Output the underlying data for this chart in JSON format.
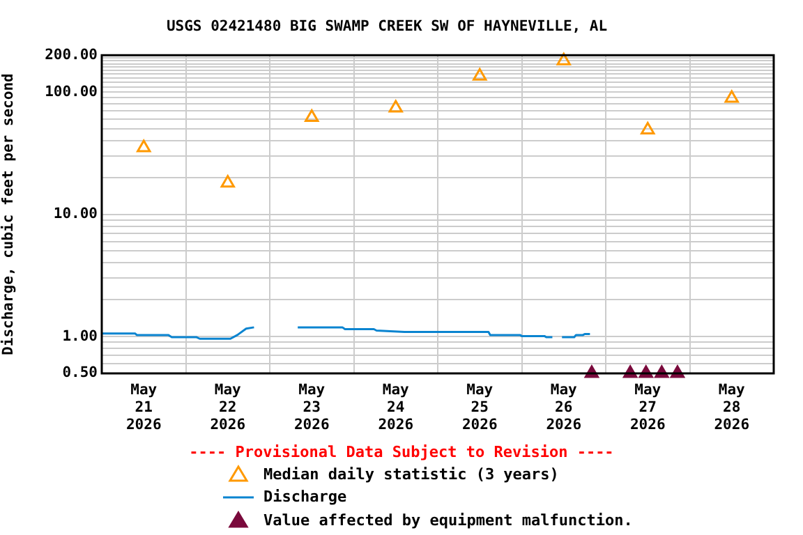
{
  "chart_data": {
    "type": "line",
    "title": "USGS 02421480 BIG SWAMP CREEK SW OF HAYNEVILLE, AL",
    "ylabel": "Discharge, cubic feet per second",
    "annotations": [
      "---- Provisional Data Subject to Revision ----"
    ],
    "log": "y",
    "grid": true,
    "legend": "bottom",
    "xlim": [
      "2026-05-21T00:00",
      "2026-05-29T00:00"
    ],
    "xticks": [
      {
        "value": "2026-05-21T00:00",
        "label": null
      },
      {
        "value": "2026-05-21T12:00",
        "label": "May\n21\n2026"
      },
      {
        "value": "2026-05-22T00:00",
        "label": null
      },
      {
        "value": "2026-05-22T12:00",
        "label": "May\n22\n2026"
      },
      {
        "value": "2026-05-23T00:00",
        "label": null
      },
      {
        "value": "2026-05-23T12:00",
        "label": "May\n23\n2026"
      },
      {
        "value": "2026-05-24T00:00",
        "label": null
      },
      {
        "value": "2026-05-24T12:00",
        "label": "May\n24\n2026"
      },
      {
        "value": "2026-05-25T00:00",
        "label": null
      },
      {
        "value": "2026-05-25T12:00",
        "label": "May\n25\n2026"
      },
      {
        "value": "2026-05-26T00:00",
        "label": null
      },
      {
        "value": "2026-05-26T12:00",
        "label": "May\n26\n2026"
      },
      {
        "value": "2026-05-27T00:00",
        "label": null
      },
      {
        "value": "2026-05-27T12:00",
        "label": "May\n27\n2026"
      },
      {
        "value": "2026-05-28T00:00",
        "label": null
      },
      {
        "value": "2026-05-28T12:00",
        "label": "May\n28\n2026"
      },
      {
        "value": "2026-05-29T00:00",
        "label": null
      }
    ],
    "ylim": [
      0.5,
      200
    ],
    "yticks": [
      {
        "value": 0.5,
        "label": "0.50"
      },
      {
        "value": 0.6,
        "label": null
      },
      {
        "value": 0.7,
        "label": null
      },
      {
        "value": 0.8,
        "label": null
      },
      {
        "value": 0.9,
        "label": null
      },
      {
        "value": 1,
        "label": "1.00"
      },
      {
        "value": 2,
        "label": null
      },
      {
        "value": 3,
        "label": null
      },
      {
        "value": 4,
        "label": null
      },
      {
        "value": 5,
        "label": null
      },
      {
        "value": 6,
        "label": null
      },
      {
        "value": 7,
        "label": null
      },
      {
        "value": 8,
        "label": null
      },
      {
        "value": 9,
        "label": null
      },
      {
        "value": 10,
        "label": "10.00"
      },
      {
        "value": 20,
        "label": null
      },
      {
        "value": 30,
        "label": null
      },
      {
        "value": 40,
        "label": null
      },
      {
        "value": 50,
        "label": null
      },
      {
        "value": 60,
        "label": null
      },
      {
        "value": 70,
        "label": null
      },
      {
        "value": 80,
        "label": null
      },
      {
        "value": 90,
        "label": null
      },
      {
        "value": 100,
        "label": "100.00"
      },
      {
        "value": 110,
        "label": null
      },
      {
        "value": 120,
        "label": null
      },
      {
        "value": 130,
        "label": null
      },
      {
        "value": 140,
        "label": null
      },
      {
        "value": 150,
        "label": null
      },
      {
        "value": 160,
        "label": null
      },
      {
        "value": 170,
        "label": null
      },
      {
        "value": 180,
        "label": null
      },
      {
        "value": 190,
        "label": null
      },
      {
        "value": 200,
        "label": "200.00"
      }
    ],
    "series": [
      {
        "name": "Median daily statistic (3 years)",
        "type": "scatter",
        "marker": "triangle",
        "color": "#ff9900",
        "x": [
          "2026-05-21T12:00",
          "2026-05-22T12:00",
          "2026-05-23T12:00",
          "2026-05-24T12:00",
          "2026-05-25T12:00",
          "2026-05-26T12:00",
          "2026-05-27T12:00",
          "2026-05-28T12:00"
        ],
        "values": [
          35,
          18,
          62,
          74,
          135,
          180,
          49,
          89
        ]
      },
      {
        "name": "Discharge",
        "marker": "none",
        "color": "#0a84d0",
        "x": [
          "2026-05-21T00:00",
          "2026-05-21T09:30",
          "2026-05-21T10:00",
          "2026-05-21T19:00",
          "2026-05-21T20:00",
          "2026-05-22T03:00",
          "2026-05-22T04:00",
          "2026-05-22T12:45",
          "2026-05-22T14:45",
          "2026-05-22T17:15",
          "2026-05-22T19:30",
          "2026-05-23T00:00",
          "2026-05-23T08:00",
          "2026-05-23T20:45",
          "2026-05-23T21:30",
          "2026-05-24T05:45",
          "2026-05-24T06:30",
          "2026-05-24T14:30",
          "2026-05-25T14:30",
          "2026-05-25T15:00",
          "2026-05-25T23:30",
          "2026-05-26T00:00",
          "2026-05-26T06:30",
          "2026-05-26T07:00",
          "2026-05-26T08:45",
          "2026-05-26T10:00",
          "2026-05-26T11:30",
          "2026-05-26T15:00",
          "2026-05-26T15:30",
          "2026-05-26T17:30",
          "2026-05-26T18:00",
          "2026-05-26T19:30"
        ],
        "values": [
          1.06,
          1.06,
          1.03,
          1.03,
          0.99,
          0.99,
          0.96,
          0.96,
          1.03,
          1.16,
          1.19,
          null,
          1.19,
          1.19,
          1.15,
          1.15,
          1.12,
          1.09,
          1.09,
          1.03,
          1.03,
          1.01,
          1.01,
          0.99,
          0.99,
          null,
          0.99,
          0.99,
          1.03,
          1.03,
          1.05,
          1.05
        ]
      },
      {
        "name": "Value affected by equipment malfunction.",
        "type": "scatter",
        "marker": "triangle",
        "color": "#7a0a3c",
        "x": [
          "2026-05-26T20:00",
          "2026-05-27T07:00",
          "2026-05-27T11:30",
          "2026-05-27T16:00",
          "2026-05-27T20:30"
        ],
        "values": [
          0.5,
          0.5,
          0.5,
          0.5,
          0.5
        ]
      }
    ]
  }
}
